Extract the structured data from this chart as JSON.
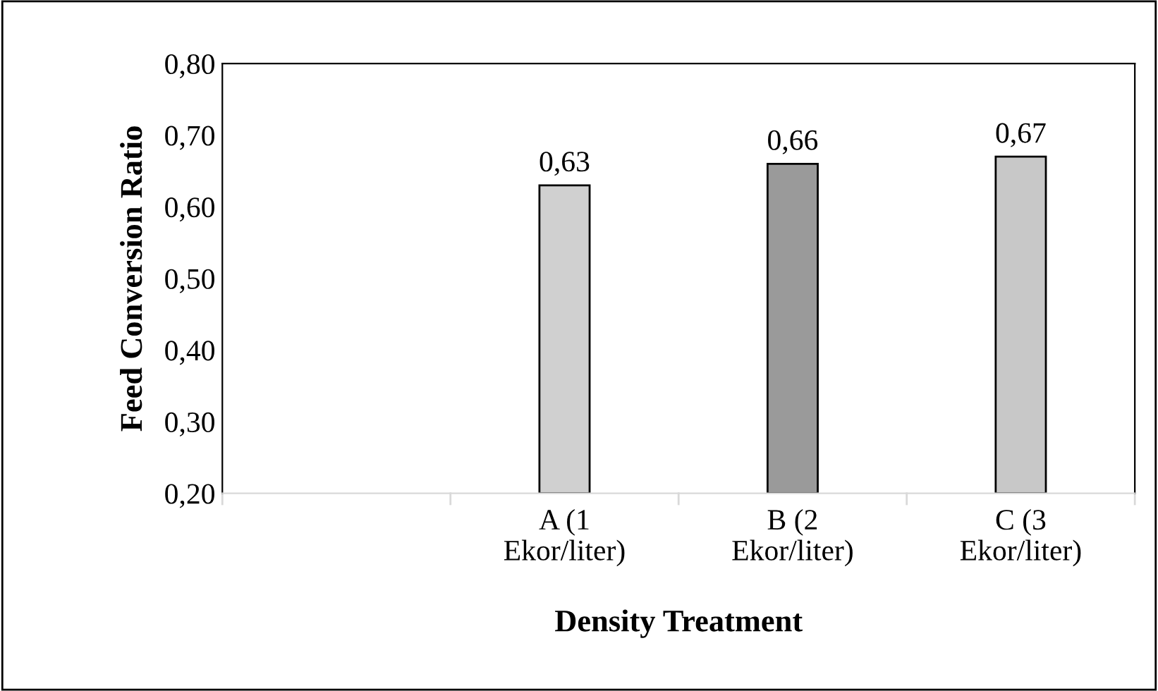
{
  "chart_data": {
    "type": "bar",
    "xlabel": "Density Treatment",
    "ylabel": "Feed Conversion Ratio",
    "categories": [
      null,
      "A (1\nEkor/liter)",
      "B (2\nEkor/liter)",
      "C (3\nEkor/liter)"
    ],
    "values": [
      null,
      0.63,
      0.66,
      0.67
    ],
    "colors": [
      "#ffffff",
      "#d0d0d0",
      "#9a9a9a",
      "#c8c8c8"
    ],
    "value_labels": [
      null,
      "0,63",
      "0,66",
      "0,67"
    ],
    "ylim": [
      0.2,
      0.8
    ],
    "yticks": [
      {
        "value": 0.2,
        "label": "0,20"
      },
      {
        "value": 0.3,
        "label": "0,30"
      },
      {
        "value": 0.4,
        "label": "0,40"
      },
      {
        "value": 0.5,
        "label": "0,50"
      },
      {
        "value": 0.6,
        "label": "0,60"
      },
      {
        "value": 0.7,
        "label": "0,70"
      },
      {
        "value": 0.8,
        "label": "0,80"
      }
    ],
    "grid": false,
    "legend": false
  }
}
